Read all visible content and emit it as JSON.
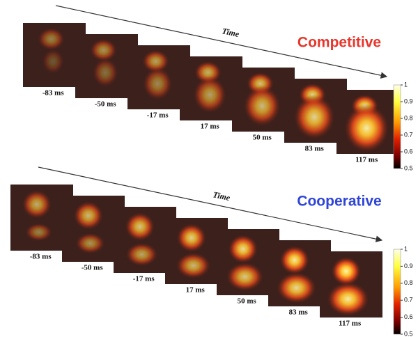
{
  "panels": [
    {
      "title": "Competitive",
      "title_color": "#e8352b",
      "axis_label": "Time",
      "frames": [
        "-83 ms",
        "-50 ms",
        "-17 ms",
        "17 ms",
        "50 ms",
        "83 ms",
        "117 ms"
      ],
      "colorbar": {
        "range": [
          0.5,
          1
        ],
        "ticks": [
          1,
          0.9,
          0.8,
          0.7,
          0.6,
          0.5
        ]
      }
    },
    {
      "title": "Cooperative",
      "title_color": "#2f45d8",
      "axis_label": "Time",
      "frames": [
        "-83 ms",
        "-50 ms",
        "-17 ms",
        "17 ms",
        "50 ms",
        "83 ms",
        "117 ms"
      ],
      "colorbar": {
        "range": [
          0.5,
          1
        ],
        "ticks": [
          1,
          0.9,
          0.8,
          0.7,
          0.6,
          0.5
        ]
      }
    }
  ]
}
